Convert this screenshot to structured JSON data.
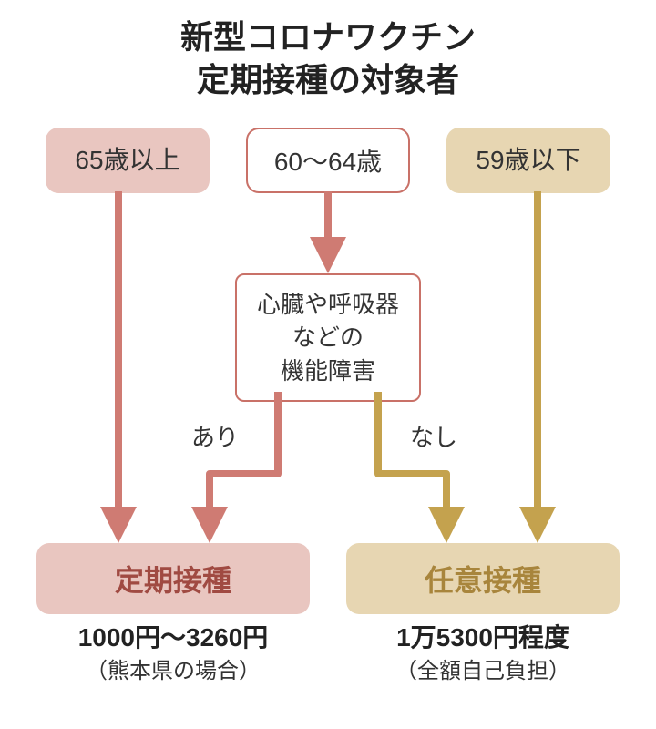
{
  "title_line1": "新型コロナワクチン",
  "title_line2": "定期接種の対象者",
  "title_fontsize": 36,
  "title_color": "#222222",
  "age_groups": {
    "g65": {
      "label": "65歳以上",
      "bg": "#e9c6c0",
      "border": "none",
      "text_color": "#333333"
    },
    "g60_64": {
      "label": "60～64歳",
      "bg": "#ffffff",
      "border": "#c97168",
      "text_color": "#333333"
    },
    "g59": {
      "label": "59歳以下",
      "bg": "#e7d6b2",
      "border": "none",
      "text_color": "#333333"
    }
  },
  "age_fontsize": 28,
  "condition": {
    "line1": "心臓や呼吸器",
    "line2": "などの",
    "line3": "機能障害",
    "fontsize": 26,
    "border_color": "#c97168",
    "text_color": "#333333"
  },
  "branch_labels": {
    "yes": {
      "text": "あり",
      "color": "#333333",
      "fontsize": 26
    },
    "no": {
      "text": "なし",
      "color": "#333333",
      "fontsize": 26
    }
  },
  "results": {
    "routine": {
      "label": "定期接種",
      "bg": "#e9c6c0",
      "text_color": "#a04a42",
      "price": "1000円～3260円",
      "note": "（熊本県の場合）"
    },
    "optional": {
      "label": "任意接種",
      "bg": "#e7d6b2",
      "text_color": "#a8853c",
      "price": "1万5300円程度",
      "note": "（全額自己負担）"
    },
    "label_fontsize": 32,
    "price_fontsize": 28,
    "note_fontsize": 24,
    "price_color": "#222222",
    "note_color": "#333333"
  },
  "arrow_colors": {
    "pink": "#cf7b73",
    "gold": "#c4a24e"
  },
  "arrow_width": 8,
  "background": "#ffffff"
}
